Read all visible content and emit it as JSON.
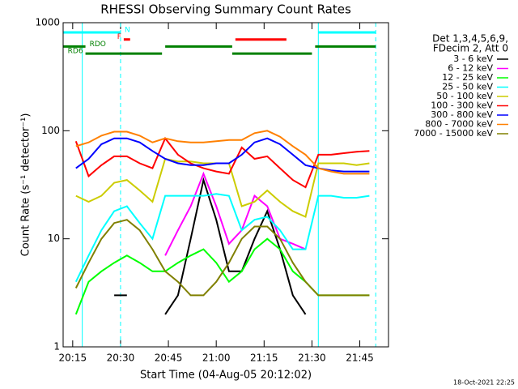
{
  "chart_data": {
    "type": "line",
    "title": "RHESSI Observing Summary Count Rates",
    "x_label": "Start Time (04-Aug-05 20:12:02)",
    "y_label": "Count Rate (s⁻¹ detector⁻¹)",
    "timestamp": "18-Oct-2021 22:25",
    "legend_title": [
      "Det 1,3,4,5,6,9,",
      "FDecim 2, Att 0"
    ],
    "log_y": true,
    "xlim": [
      "20:12",
      "21:54"
    ],
    "xticks": [
      "20:15",
      "20:30",
      "20:45",
      "21:00",
      "21:15",
      "21:30",
      "21:45"
    ],
    "ylim": [
      1,
      1000
    ],
    "yticks": [
      1,
      10,
      100,
      1000
    ],
    "x": [
      "20:12",
      "20:16",
      "20:20",
      "20:24",
      "20:28",
      "20:32",
      "20:36",
      "20:40",
      "20:44",
      "20:48",
      "20:52",
      "20:56",
      "21:00",
      "21:04",
      "21:08",
      "21:12",
      "21:16",
      "21:20",
      "21:24",
      "21:28",
      "21:32",
      "21:36",
      "21:40",
      "21:44",
      "21:48",
      "21:52"
    ],
    "series": [
      {
        "name": "3 - 6 keV",
        "color": "#000000",
        "values": [
          null,
          null,
          null,
          null,
          3,
          3,
          null,
          null,
          2,
          3,
          10,
          35,
          15,
          5,
          5,
          10,
          18,
          8,
          3,
          2,
          null,
          null,
          null,
          null,
          null,
          null
        ]
      },
      {
        "name": "6 - 12 keV",
        "color": "#ff00ff",
        "values": [
          null,
          null,
          null,
          null,
          null,
          null,
          null,
          null,
          7,
          12,
          20,
          40,
          20,
          9,
          12,
          25,
          20,
          10,
          9,
          8,
          null,
          null,
          null,
          null,
          null,
          null
        ]
      },
      {
        "name": "12 - 25 keV",
        "color": "#00ff00",
        "values": [
          null,
          2,
          4,
          5,
          6,
          7,
          6,
          5,
          5,
          6,
          7,
          8,
          6,
          4,
          5,
          8,
          10,
          8,
          5,
          4,
          3,
          3,
          3,
          3,
          3,
          null
        ]
      },
      {
        "name": "25 - 50 keV",
        "color": "#00ffff",
        "values": [
          null,
          4,
          7,
          12,
          18,
          20,
          14,
          10,
          25,
          25,
          25,
          25,
          26,
          25,
          12,
          15,
          16,
          12,
          8,
          8,
          25,
          25,
          24,
          24,
          25,
          null
        ]
      },
      {
        "name": "50 - 100 keV",
        "color": "#cccc00",
        "values": [
          null,
          25,
          22,
          25,
          33,
          35,
          28,
          22,
          55,
          52,
          52,
          50,
          50,
          50,
          20,
          22,
          28,
          22,
          18,
          16,
          50,
          50,
          50,
          48,
          50,
          null
        ]
      },
      {
        "name": "100 - 300 keV",
        "color": "#ff0000",
        "values": [
          null,
          80,
          38,
          48,
          58,
          58,
          50,
          45,
          85,
          60,
          50,
          45,
          42,
          40,
          70,
          55,
          58,
          45,
          35,
          30,
          60,
          60,
          62,
          64,
          65,
          null
        ]
      },
      {
        "name": "300 - 800 keV",
        "color": "#0000ff",
        "values": [
          null,
          45,
          55,
          75,
          85,
          85,
          78,
          65,
          55,
          50,
          48,
          48,
          50,
          50,
          60,
          78,
          85,
          75,
          60,
          48,
          45,
          43,
          42,
          42,
          42,
          null
        ]
      },
      {
        "name": "800 - 7000 keV",
        "color": "#ff8000",
        "values": [
          null,
          72,
          78,
          90,
          98,
          98,
          90,
          78,
          85,
          80,
          78,
          78,
          80,
          82,
          82,
          95,
          100,
          88,
          72,
          60,
          45,
          42,
          40,
          40,
          40,
          null
        ]
      },
      {
        "name": "7000 - 15000 keV",
        "color": "#808000",
        "values": [
          null,
          3.5,
          6,
          10,
          14,
          15,
          12,
          8,
          5,
          4,
          3,
          3,
          4,
          6,
          10,
          13,
          13,
          10,
          6,
          4,
          3,
          3,
          3,
          3,
          3,
          null
        ]
      }
    ],
    "flags": [
      {
        "label": "N",
        "color": "#00ffff",
        "intervals": [
          [
            "20:12",
            "20:30"
          ],
          [
            "21:32",
            "21:50"
          ]
        ]
      },
      {
        "label": "F",
        "color": "#ff0000",
        "intervals": [
          [
            "20:31",
            "20:33"
          ],
          [
            "21:06",
            "21:22"
          ]
        ]
      },
      {
        "label": "RDO",
        "color": "#008000",
        "intervals": [
          [
            "20:12",
            "20:19"
          ],
          [
            "20:44",
            "21:05"
          ],
          [
            "21:31",
            "21:50"
          ]
        ]
      },
      {
        "label": "RD6",
        "color": "#008000",
        "intervals": [
          [
            "20:19",
            "20:43"
          ],
          [
            "21:05",
            "21:30"
          ]
        ]
      }
    ],
    "markers": [
      {
        "time": "20:18",
        "style": "solid",
        "color": "#00ffff"
      },
      {
        "time": "20:30",
        "style": "dashed",
        "color": "#00ffff"
      },
      {
        "time": "21:32",
        "style": "solid",
        "color": "#00ffff"
      },
      {
        "time": "21:50",
        "style": "dashed",
        "color": "#00ffff"
      }
    ]
  }
}
